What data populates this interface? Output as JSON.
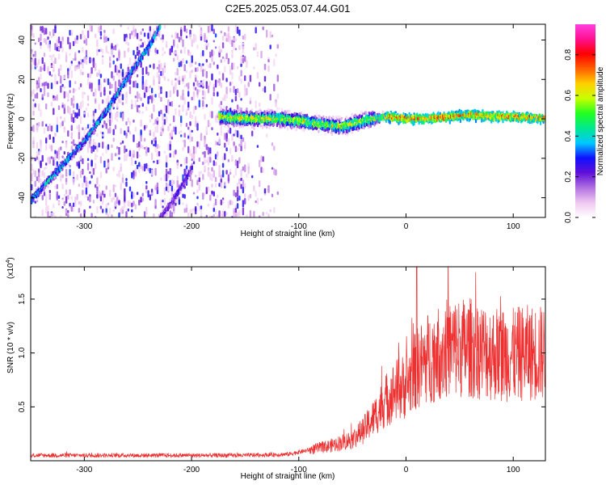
{
  "title": "C2E5.2025.053.07.44.G01",
  "chart_data": [
    {
      "type": "heatmap",
      "xlabel": "Height of straight line (km)",
      "ylabel": "Frequency (Hz)",
      "xlim": [
        -350,
        130
      ],
      "ylim": [
        -50,
        48
      ],
      "xticks": [
        -300,
        -200,
        -100,
        0,
        100
      ],
      "yticks": [
        -40,
        -20,
        0,
        20,
        40
      ],
      "colorbar": {
        "label": "Normalized spectral amplitude",
        "range": [
          0,
          0.95
        ],
        "ticks": [
          0.0,
          0.2,
          0.4,
          0.6,
          0.8
        ],
        "colors": [
          "#ffffff",
          "#f0c8f0",
          "#b070e0",
          "#6010d8",
          "#1010ff",
          "#00c8ff",
          "#00e890",
          "#20ff20",
          "#c8ff00",
          "#ffd000",
          "#ff6000",
          "#ff0000",
          "#ff1090",
          "#ff40e0"
        ]
      },
      "features": [
        {
          "name": "",
          "x": [
            -350,
            -330,
            -300,
            -280,
            -260,
            -240,
            -230
          ],
          "y": [
            -40,
            -28,
            -10,
            5,
            22,
            38,
            48
          ],
          "amplitude": 0.45
        },
        {
          "name": "",
          "x": [
            -230,
            -215,
            -200
          ],
          "y": [
            -50,
            -38,
            -24
          ],
          "amplitude": 0.3
        },
        {
          "name": "",
          "x": [
            -175,
            -150,
            -120,
            -100,
            -80,
            -60,
            -40,
            -20,
            0,
            20,
            40,
            60,
            80,
            100,
            130
          ],
          "y": [
            2,
            1,
            1,
            0,
            -2,
            -3,
            0,
            2,
            1,
            1,
            2,
            3,
            2,
            2,
            1
          ],
          "amplitude": 0.7
        }
      ]
    },
    {
      "type": "line",
      "xlabel": "Height of straight line (km)",
      "ylabel": "SNR (10 * v/v)",
      "scale_label": "(x10",
      "scale_exp": "4",
      "xlim": [
        -350,
        130
      ],
      "ylim": [
        0,
        1.8
      ],
      "xticks": [
        -300,
        -200,
        -100,
        0,
        100
      ],
      "yticks": [
        0.5,
        1.0,
        1.5
      ],
      "series": [
        {
          "name": "",
          "color": "#ee3030",
          "x": [
            -350,
            -300,
            -250,
            -200,
            -150,
            -110,
            -90,
            -70,
            -50,
            -40,
            -30,
            -20,
            -10,
            0,
            10,
            20,
            30,
            40,
            60,
            80,
            100,
            110,
            130
          ],
          "y": [
            0.05,
            0.05,
            0.05,
            0.05,
            0.05,
            0.06,
            0.1,
            0.14,
            0.2,
            0.28,
            0.4,
            0.55,
            0.65,
            0.7,
            0.85,
            0.95,
            1.0,
            1.05,
            1.05,
            1.0,
            0.98,
            1.0,
            1.0
          ]
        }
      ]
    }
  ]
}
